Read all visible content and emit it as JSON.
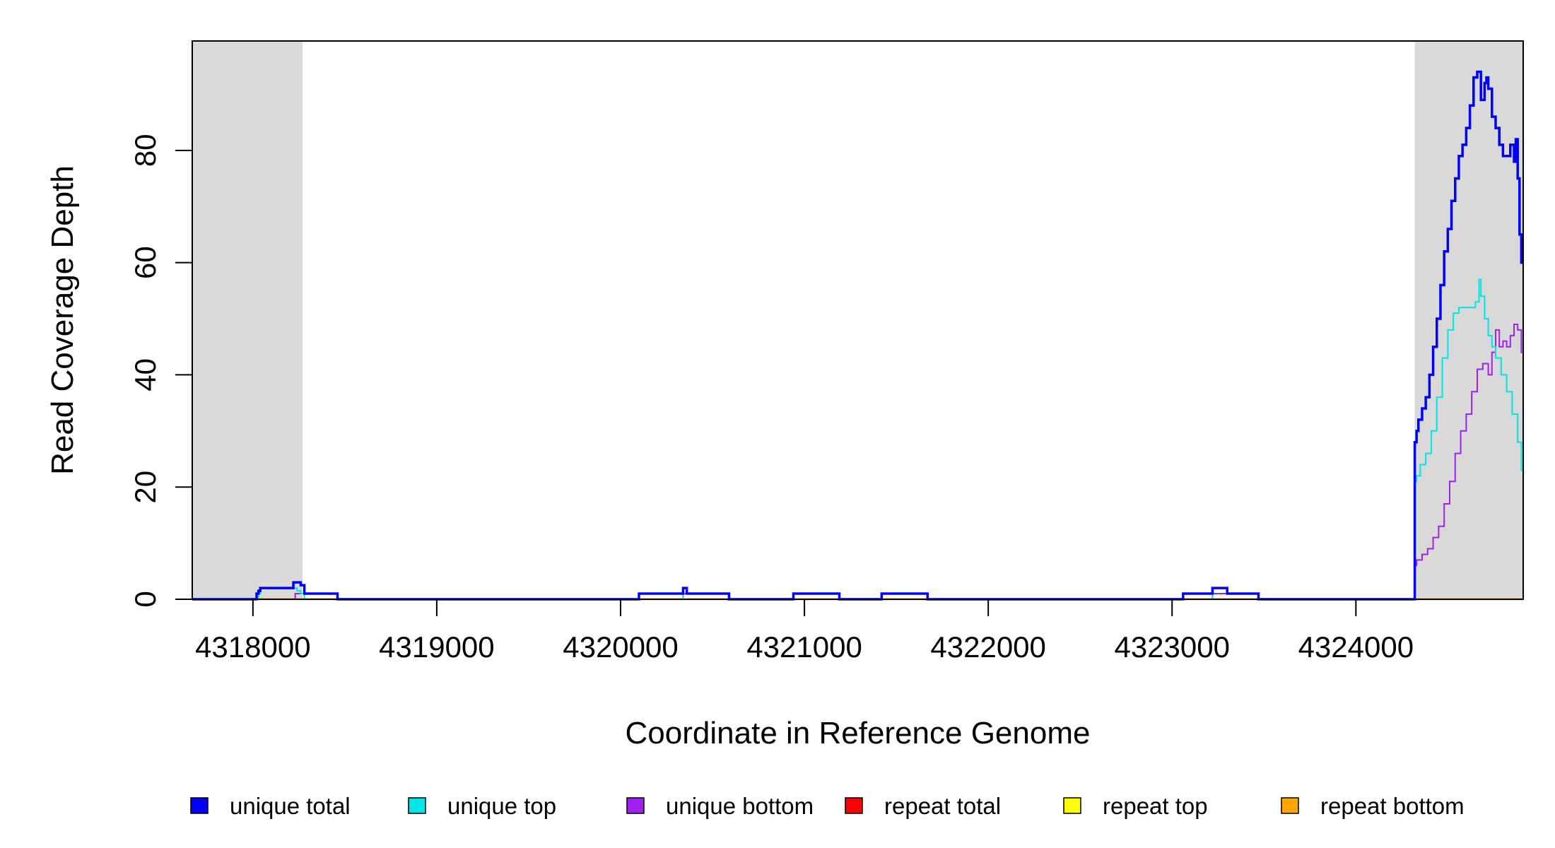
{
  "chart_data": {
    "type": "line",
    "xlabel": "Coordinate in Reference Genome",
    "ylabel": "Read Coverage Depth",
    "xlim": [
      4317670,
      4324910
    ],
    "ylim": [
      0,
      99.5
    ],
    "x_ticks": [
      4318000,
      4319000,
      4320000,
      4321000,
      4322000,
      4323000,
      4324000
    ],
    "y_ticks": [
      0,
      20,
      40,
      60,
      80
    ],
    "shaded_regions": [
      [
        4317670,
        4318270
      ],
      [
        4324320,
        4324910
      ]
    ],
    "shade_color": "#d9d9d9",
    "legend_position": "bottom",
    "series": [
      {
        "name": "unique total",
        "color": "#0000ff",
        "x": [
          4317670,
          4318020,
          4318030,
          4318040,
          4318220,
          4318260,
          4318280,
          4318300,
          4318460,
          4320100,
          4320340,
          4320360,
          4320590,
          4320940,
          4321190,
          4321420,
          4321670,
          4323060,
          4323220,
          4323300,
          4323470,
          4324320,
          4324330,
          4324340,
          4324360,
          4324380,
          4324400,
          4324420,
          4324440,
          4324460,
          4324480,
          4324500,
          4324520,
          4324540,
          4324560,
          4324580,
          4324600,
          4324620,
          4324640,
          4324660,
          4324680,
          4324700,
          4324710,
          4324720,
          4324740,
          4324760,
          4324780,
          4324800,
          4324820,
          4324840,
          4324860,
          4324870,
          4324880,
          4324890,
          4324900
        ],
        "y": [
          0,
          1,
          1.5,
          2,
          3,
          2.5,
          1,
          1,
          0,
          1,
          2,
          1,
          0,
          1,
          0,
          1,
          0,
          1,
          2,
          1,
          0,
          28,
          30,
          32,
          34,
          36,
          40,
          45,
          50,
          56,
          62,
          66,
          71,
          75,
          79,
          81,
          84,
          88,
          93,
          94,
          89,
          92,
          93,
          91,
          86,
          84,
          81,
          79,
          79,
          81,
          78,
          82,
          75,
          65,
          60
        ]
      },
      {
        "name": "unique top",
        "color": "#00e5e5",
        "x": [
          4317670,
          4318030,
          4318040,
          4318220,
          4318240,
          4318260,
          4318280,
          4320100,
          4320340,
          4320940,
          4321190,
          4323060,
          4323220,
          4324320,
          4324330,
          4324350,
          4324380,
          4324410,
          4324440,
          4324470,
          4324500,
          4324530,
          4324560,
          4324590,
          4324620,
          4324650,
          4324670,
          4324680,
          4324700,
          4324720,
          4324740,
          4324760,
          4324790,
          4324820,
          4324850,
          4324880,
          4324900
        ],
        "y": [
          0,
          1,
          2,
          2,
          1.5,
          1,
          0,
          1,
          0,
          1,
          0,
          1,
          0,
          21,
          22,
          24,
          26,
          30,
          36,
          43,
          48,
          51,
          52,
          52,
          52,
          53,
          57,
          54,
          50,
          47,
          45,
          43,
          40,
          37,
          33,
          28,
          23
        ]
      },
      {
        "name": "unique bottom",
        "color": "#a020f0",
        "x": [
          4317670,
          4318230,
          4318240,
          4318280,
          4318460,
          4320340,
          4320590,
          4321420,
          4321670,
          4323220,
          4323470,
          4324320,
          4324330,
          4324360,
          4324390,
          4324420,
          4324450,
          4324480,
          4324510,
          4324540,
          4324570,
          4324600,
          4324630,
          4324660,
          4324690,
          4324720,
          4324740,
          4324760,
          4324780,
          4324800,
          4324820,
          4324840,
          4324860,
          4324880,
          4324900
        ],
        "y": [
          0,
          1,
          1,
          1,
          0,
          1,
          0,
          1,
          0,
          1,
          0,
          6,
          7,
          8,
          9,
          11,
          13,
          17,
          21,
          26,
          30,
          33,
          37,
          41,
          42,
          40,
          44,
          48,
          45,
          46,
          45,
          47,
          49,
          48,
          44
        ]
      },
      {
        "name": "repeat total",
        "color": "#ff0000",
        "x": [
          4317670,
          4324910
        ],
        "y": [
          0,
          0
        ]
      },
      {
        "name": "repeat top",
        "color": "#ffff00",
        "x": [
          4317670,
          4324910
        ],
        "y": [
          0,
          0
        ]
      },
      {
        "name": "repeat bottom",
        "color": "#ffa500",
        "x": [
          4317670,
          4324910
        ],
        "y": [
          0,
          0
        ]
      }
    ]
  }
}
